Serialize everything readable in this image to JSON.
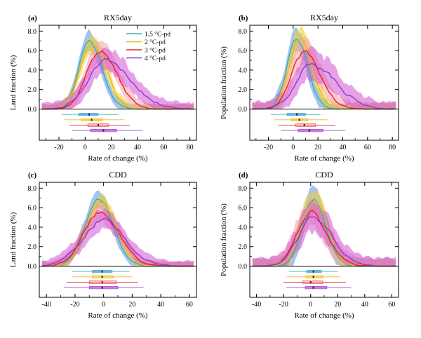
{
  "figure": {
    "colors": {
      "1.5 °C-pd": "#2bb3b8",
      "2 °C-pd": "#e8b520",
      "3 °C-pd": "#e8202a",
      "4 °C-pd": "#8a3cc8",
      "band_1.5 °C-pd": "#5a8fe8",
      "band_2 °C-pd": "#f5d020",
      "band_3 °C-pd": "#f5a0a8",
      "band_4 °C-pd": "#d455d4"
    }
  },
  "chart_data": [
    {
      "panel": "(a)",
      "type": "line",
      "title": "RX5day",
      "xlabel": "Rate of change (%)",
      "ylabel": "Land fraction (%)",
      "xlim": [
        -35,
        85
      ],
      "ylim": [
        -3.2,
        8.6
      ],
      "xticks": [
        -20,
        0,
        20,
        40,
        60,
        80
      ],
      "xticklabels": [
        "-20",
        "0",
        "20",
        "40",
        "60",
        "80"
      ],
      "yticks": [
        0,
        2,
        4,
        6,
        8
      ],
      "yticklabels": [
        "0.0",
        "2.0",
        "4.0",
        "6.0",
        "8.0"
      ],
      "legend": {
        "position": "top-right",
        "entries": [
          "1.5 °C-pd",
          "2 °C-pd",
          "3 °C-pd",
          "4 °C-pd"
        ]
      },
      "series": [
        {
          "name": "1.5 °C-pd",
          "center": 3,
          "peak": 7.0,
          "sl": 8,
          "sr": 10,
          "band": 0.9,
          "seed": 11,
          "box": [
            -5,
            3,
            10
          ],
          "whisker": [
            -18,
            25
          ]
        },
        {
          "name": "2 °C-pd",
          "center": 5,
          "peak": 6.8,
          "sl": 9,
          "sr": 11,
          "band": 0.8,
          "seed": 23,
          "box": [
            -3,
            5,
            13
          ],
          "whisker": [
            -16,
            30
          ]
        },
        {
          "name": "3 °C-pd",
          "center": 11,
          "peak": 6.0,
          "sl": 10,
          "sr": 13,
          "band": 1.0,
          "seed": 37,
          "box": [
            2,
            10,
            18
          ],
          "whisker": [
            -12,
            34
          ]
        },
        {
          "name": "4 °C-pd",
          "center": 15,
          "peak": 4.8,
          "sl": 13,
          "sr": 20,
          "band": 1.2,
          "seed": 51,
          "box": [
            4,
            14,
            24
          ],
          "whisker": [
            -10,
            44
          ]
        }
      ]
    },
    {
      "panel": "(b)",
      "type": "line",
      "title": "RX5day",
      "xlabel": "Rate of change (%)",
      "ylabel": "Population fraction (%)",
      "xlim": [
        -35,
        85
      ],
      "ylim": [
        -3.2,
        8.6
      ],
      "xticks": [
        -20,
        0,
        20,
        40,
        60,
        80
      ],
      "xticklabels": [
        "-20",
        "0",
        "20",
        "40",
        "60",
        "80"
      ],
      "yticks": [
        0,
        2,
        4,
        6,
        8
      ],
      "yticklabels": [
        "0.0",
        "2.0",
        "4.0",
        "6.0",
        "8.0"
      ],
      "series": [
        {
          "name": "1.5 °C-pd",
          "center": 3,
          "peak": 7.2,
          "sl": 8,
          "sr": 9,
          "band": 1.1,
          "seed": 13,
          "box": [
            -5,
            3,
            10
          ],
          "whisker": [
            -18,
            22
          ]
        },
        {
          "name": "2 °C-pd",
          "center": 5,
          "peak": 7.4,
          "sl": 8,
          "sr": 10,
          "band": 1.1,
          "seed": 29,
          "box": [
            -2,
            5,
            12
          ],
          "whisker": [
            -15,
            28
          ]
        },
        {
          "name": "3 °C-pd",
          "center": 9,
          "peak": 5.8,
          "sl": 10,
          "sr": 13,
          "band": 1.3,
          "seed": 41,
          "box": [
            2,
            9,
            18
          ],
          "whisker": [
            -12,
            34
          ]
        },
        {
          "name": "4 °C-pd",
          "center": 14,
          "peak": 4.6,
          "sl": 12,
          "sr": 20,
          "band": 1.4,
          "seed": 57,
          "box": [
            4,
            13,
            24
          ],
          "whisker": [
            -10,
            42
          ]
        }
      ]
    },
    {
      "panel": "(c)",
      "type": "line",
      "title": "CDD",
      "xlabel": "Rate of change (%)",
      "ylabel": "Land fraction (%)",
      "xlim": [
        -45,
        65
      ],
      "ylim": [
        -3.2,
        8.6
      ],
      "xticks": [
        -40,
        -20,
        0,
        20,
        40,
        60
      ],
      "xticklabels": [
        "-40",
        "-20",
        "0",
        "20",
        "40",
        "60"
      ],
      "yticks": [
        0,
        2,
        4,
        6,
        8
      ],
      "yticklabels": [
        "0.0",
        "2.0",
        "4.0",
        "6.0",
        "8.0"
      ],
      "series": [
        {
          "name": "1.5 °C-pd",
          "center": -3,
          "peak": 6.9,
          "sl": 10,
          "sr": 10,
          "band": 0.8,
          "seed": 17,
          "box": [
            -8,
            -1,
            6
          ],
          "whisker": [
            -22,
            18
          ]
        },
        {
          "name": "2 °C-pd",
          "center": -2,
          "peak": 6.5,
          "sl": 10,
          "sr": 11,
          "band": 0.7,
          "seed": 31,
          "box": [
            -8,
            -1,
            7
          ],
          "whisker": [
            -22,
            20
          ]
        },
        {
          "name": "3 °C-pd",
          "center": -2,
          "peak": 5.5,
          "sl": 12,
          "sr": 13,
          "band": 0.9,
          "seed": 43,
          "box": [
            -10,
            -1,
            9
          ],
          "whisker": [
            -26,
            24
          ]
        },
        {
          "name": "4 °C-pd",
          "center": -1,
          "peak": 4.7,
          "sl": 14,
          "sr": 16,
          "band": 1.0,
          "seed": 59,
          "box": [
            -10,
            -1,
            10
          ],
          "whisker": [
            -28,
            28
          ]
        }
      ]
    },
    {
      "panel": "(d)",
      "type": "line",
      "title": "CDD",
      "xlabel": "Rate of change (%)",
      "ylabel": "Population fraction (%)",
      "xlim": [
        -45,
        65
      ],
      "ylim": [
        -3.2,
        8.6
      ],
      "xticks": [
        -40,
        -20,
        0,
        20,
        40,
        60
      ],
      "xticklabels": [
        "-40",
        "-20",
        "0",
        "20",
        "40",
        "60"
      ],
      "yticks": [
        0,
        2,
        4,
        6,
        8
      ],
      "yticklabels": [
        "0.0",
        "2.0",
        "4.0",
        "6.0",
        "8.0"
      ],
      "series": [
        {
          "name": "1.5 °C-pd",
          "center": 2,
          "peak": 7.0,
          "sl": 8,
          "sr": 9,
          "band": 1.4,
          "seed": 19,
          "box": [
            -3,
            2,
            8
          ],
          "whisker": [
            -16,
            20
          ]
        },
        {
          "name": "2 °C-pd",
          "center": 2,
          "peak": 6.6,
          "sl": 9,
          "sr": 10,
          "band": 1.3,
          "seed": 33,
          "box": [
            -4,
            2,
            9
          ],
          "whisker": [
            -18,
            22
          ]
        },
        {
          "name": "3 °C-pd",
          "center": 0,
          "peak": 5.5,
          "sl": 10,
          "sr": 12,
          "band": 1.4,
          "seed": 47,
          "box": [
            -6,
            0,
            9
          ],
          "whisker": [
            -20,
            26
          ]
        },
        {
          "name": "4 °C-pd",
          "center": 2,
          "peak": 5.0,
          "sl": 11,
          "sr": 14,
          "band": 1.5,
          "seed": 61,
          "box": [
            -4,
            2,
            12
          ],
          "whisker": [
            -18,
            30
          ]
        }
      ]
    }
  ]
}
